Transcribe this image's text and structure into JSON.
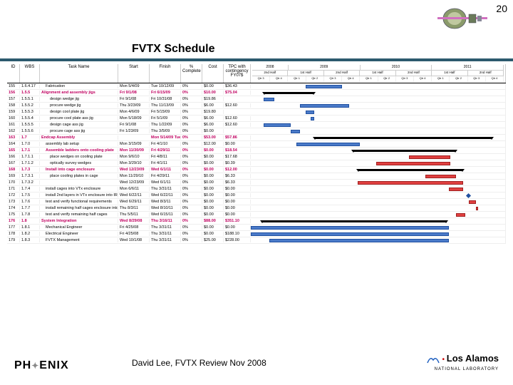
{
  "page_number": "20",
  "title": "FVTX Schedule",
  "footer_text": "David Lee, FVTX Review Nov 2008",
  "phenix_label_1": "PH",
  "phenix_label_2": "ENIX",
  "lanl_main": "Los Alamos",
  "lanl_sub": "NATIONAL LABORATORY",
  "headers": {
    "idx": "ID",
    "wbs": "WBS",
    "task": "Task Name",
    "start": "Start",
    "finish": "Finish",
    "pct": "% Complete",
    "cost": "Cost",
    "tpc": "TPC with contingency FY07$"
  },
  "years": [
    "2008",
    "2009",
    "2010",
    "2011"
  ],
  "halves": [
    "2nd Half",
    "1st Half",
    "2nd Half",
    "1st Half",
    "2nd Half",
    "1st Half",
    "2nd Half"
  ],
  "qtrs": [
    "Qtr 3",
    "Qtr 4",
    "Qtr 1",
    "Qtr 2",
    "Qtr 3",
    "Qtr 4",
    "Qtr 1",
    "Qtr 2",
    "Qtr 3",
    "Qtr 4",
    "Qtr 1",
    "Qtr 2",
    "Qtr 3",
    "Qtr 4"
  ],
  "gantt_range": {
    "start_q": 0,
    "total_q": 14
  },
  "rows": [
    {
      "id": "155",
      "wbs": "1.6.4.17",
      "task": "Fabrication",
      "start": "Mon 5/4/09",
      "finish": "Tue 10/12/09",
      "pct": "0%",
      "cost": "$0.00",
      "tpc": "$36.43",
      "bold": false,
      "indent": 1,
      "bar": {
        "type": "blue",
        "q_from": 3.0,
        "q_to": 5.0
      }
    },
    {
      "id": "156",
      "wbs": "1.5.5",
      "task": "Alignment and assembly jigs",
      "start": "Fri 9/1/08",
      "finish": "Fri 6/15/09",
      "pct": "0%",
      "cost": "$10.00",
      "tpc": "$75.04",
      "bold": true,
      "indent": 0,
      "bar": {
        "type": "summary",
        "q_from": 0.7,
        "q_to": 3.5
      }
    },
    {
      "id": "157",
      "wbs": "1.5.5.1",
      "task": "design wedge jig",
      "start": "Fri 9/1/08",
      "finish": "Fri 10/31/08",
      "pct": "0%",
      "cost": "$19.86",
      "tpc": "",
      "bold": false,
      "indent": 2,
      "bar": {
        "type": "blue",
        "q_from": 0.7,
        "q_to": 1.3
      }
    },
    {
      "id": "158",
      "wbs": "1.5.5.2",
      "task": "procure wedge jig",
      "start": "Thu 3/23/09",
      "finish": "Thu 11/13/09",
      "pct": "0%",
      "cost": "$6.00",
      "tpc": "$12.60",
      "bold": false,
      "indent": 2,
      "bar": {
        "type": "blue",
        "q_from": 2.7,
        "q_to": 5.4
      }
    },
    {
      "id": "159",
      "wbs": "1.5.5.3",
      "task": "design cool plate jig",
      "start": "Mon 4/6/09",
      "finish": "Fri 5/15/09",
      "pct": "0%",
      "cost": "$19.80",
      "tpc": "",
      "bold": false,
      "indent": 2,
      "bar": {
        "type": "blue",
        "q_from": 3.0,
        "q_to": 3.5
      }
    },
    {
      "id": "160",
      "wbs": "1.5.5.4",
      "task": "procure cool plate ass jig",
      "start": "Mon 5/18/09",
      "finish": "Fri 5/1/09",
      "pct": "0%",
      "cost": "$6.00",
      "tpc": "$12.60",
      "bold": false,
      "indent": 2,
      "bar": {
        "type": "blue",
        "q_from": 3.5,
        "q_to": 3.3
      }
    },
    {
      "id": "161",
      "wbs": "1.5.5.5",
      "task": "design cage ass jig",
      "start": "Fri 9/1/08",
      "finish": "Thu 1/22/09",
      "pct": "0%",
      "cost": "$6.00",
      "tpc": "$12.60",
      "bold": false,
      "indent": 2,
      "bar": {
        "type": "blue",
        "q_from": 0.7,
        "q_to": 2.2
      }
    },
    {
      "id": "162",
      "wbs": "1.5.5.6",
      "task": "procure cage ass jig",
      "start": "Fri 1/23/09",
      "finish": "Thu 3/5/09",
      "pct": "0%",
      "cost": "$0.00",
      "tpc": "",
      "bold": false,
      "indent": 2,
      "bar": {
        "type": "blue",
        "q_from": 2.2,
        "q_to": 2.7
      }
    },
    {
      "id": "163",
      "wbs": "1.7",
      "task": "Endcap Assembly",
      "start": "",
      "finish": "Mon 5/14/09 Tue 10/25/11",
      "pct": "0%",
      "cost": "$53.00",
      "tpc": "$57.86",
      "bold": true,
      "indent": 0,
      "bar": {
        "type": "summary",
        "q_from": 3.5,
        "q_to": 13.3
      }
    },
    {
      "id": "164",
      "wbs": "1.7.0",
      "task": "assembly lab setup",
      "start": "Mon 3/15/09",
      "finish": "Fri 4/1/10",
      "pct": "0%",
      "cost": "$12.00",
      "tpc": "$0.00",
      "bold": false,
      "indent": 1,
      "bar": {
        "type": "blue",
        "q_from": 2.5,
        "q_to": 6.0
      }
    },
    {
      "id": "165",
      "wbs": "1.7.1",
      "task": "Assemble ladders onto cooling plate",
      "start": "Mon 11/30/09",
      "finish": "Fri 4/29/11",
      "pct": "0%",
      "cost": "$0.00",
      "tpc": "$18.54",
      "bold": true,
      "indent": 1,
      "bar": {
        "type": "summary",
        "q_from": 5.6,
        "q_to": 11.3
      }
    },
    {
      "id": "166",
      "wbs": "1.7.1.1",
      "task": "place wedges on cooling plate",
      "start": "Mon 9/6/10",
      "finish": "Fri 4/8/11",
      "pct": "0%",
      "cost": "$0.00",
      "tpc": "$17.68",
      "bold": false,
      "indent": 2,
      "bar": {
        "type": "red",
        "q_from": 8.7,
        "q_to": 11.0
      }
    },
    {
      "id": "167",
      "wbs": "1.7.1.2",
      "task": "optically survey wedges",
      "start": "Mon 3/29/10",
      "finish": "Fri 4/1/11",
      "pct": "0%",
      "cost": "$0.00",
      "tpc": "$0.39",
      "bold": false,
      "indent": 2,
      "bar": {
        "type": "red",
        "q_from": 6.9,
        "q_to": 11.0
      }
    },
    {
      "id": "168",
      "wbs": "1.7.3",
      "task": "Install into cage enclosure",
      "start": "Wed 12/23/09",
      "finish": "Wed 6/1/11",
      "pct": "0%",
      "cost": "$0.00",
      "tpc": "$12.00",
      "bold": true,
      "indent": 1,
      "bar": {
        "type": "summary",
        "q_from": 5.9,
        "q_to": 11.7
      }
    },
    {
      "id": "169",
      "wbs": "1.7.3.1",
      "task": "place cooling plates in cage",
      "start": "Mon 11/29/10",
      "finish": "Fri 4/29/11",
      "pct": "0%",
      "cost": "$0.00",
      "tpc": "$6.33",
      "bold": false,
      "indent": 2,
      "bar": {
        "type": "red",
        "q_from": 9.6,
        "q_to": 11.3
      }
    },
    {
      "id": "170",
      "wbs": "1.7.3.2",
      "task": "",
      "start": "Wed 12/23/09",
      "finish": "Wed 6/1/11",
      "pct": "0%",
      "cost": "$0.00",
      "tpc": "$6.33",
      "bold": false,
      "indent": 2,
      "bar": {
        "type": "red",
        "q_from": 5.9,
        "q_to": 11.7
      }
    },
    {
      "id": "171",
      "wbs": "1.7.4",
      "task": "install cages into VTx enclosure",
      "start": "Mon 6/6/11",
      "finish": "Thu 3/31/11",
      "pct": "0%",
      "cost": "$0.00",
      "tpc": "$0.00",
      "bold": false,
      "indent": 1,
      "bar": {
        "type": "red",
        "q_from": 11.7,
        "q_to": 10.9
      }
    },
    {
      "id": "172",
      "wbs": "1.7.5",
      "task": "install 2nd layers in VTx enclosure into IR",
      "start": "Wed 6/22/11",
      "finish": "Wed 6/22/11",
      "pct": "0%",
      "cost": "$0.00",
      "tpc": "$0.00",
      "bold": false,
      "indent": 1,
      "bar": {
        "type": "milestone",
        "q_from": 11.9
      }
    },
    {
      "id": "173",
      "wbs": "1.7.6",
      "task": "test and verify functional requirements",
      "start": "Wed 6/29/11",
      "finish": "Wed 8/3/11",
      "pct": "0%",
      "cost": "$0.00",
      "tpc": "$0.00",
      "bold": false,
      "indent": 1,
      "bar": {
        "type": "red",
        "q_from": 12.0,
        "q_to": 12.4
      }
    },
    {
      "id": "174",
      "wbs": "1.7.7",
      "task": "install remaining half cages enclosure into IR",
      "start": "Thu 8/3/11",
      "finish": "Wed 8/10/11",
      "pct": "0%",
      "cost": "$0.00",
      "tpc": "$0.00",
      "bold": false,
      "indent": 1,
      "bar": {
        "type": "red",
        "q_from": 12.4,
        "q_to": 12.5
      }
    },
    {
      "id": "175",
      "wbs": "1.7.8",
      "task": "test and verify remaining half cages",
      "start": "Thu 5/5/11",
      "finish": "Wed 6/15/11",
      "pct": "0%",
      "cost": "$0.00",
      "tpc": "$0.00",
      "bold": false,
      "indent": 1,
      "bar": {
        "type": "red",
        "q_from": 11.3,
        "q_to": 11.8
      }
    },
    {
      "id": "176",
      "wbs": "1.8",
      "task": "System Integration",
      "start": "Wed 8/29/08",
      "finish": "Thu 3/16/11",
      "pct": "0%",
      "cost": "$88.00",
      "tpc": "$351.10",
      "bold": true,
      "indent": 0,
      "bar": {
        "type": "summary",
        "q_from": 0.6,
        "q_to": 10.8
      }
    },
    {
      "id": "177",
      "wbs": "1.8.1",
      "task": "Mechanical Engineer",
      "start": "Fri 4/25/08",
      "finish": "Thu 3/31/11",
      "pct": "0%",
      "cost": "$0.00",
      "tpc": "$0.00",
      "bold": false,
      "indent": 1,
      "bar": {
        "type": "blue",
        "q_from": 0.0,
        "q_to": 10.9
      }
    },
    {
      "id": "178",
      "wbs": "1.8.2",
      "task": "Electrical Engineer",
      "start": "Fri 4/25/08",
      "finish": "Thu 3/31/11",
      "pct": "0%",
      "cost": "$0.00",
      "tpc": "$188.10",
      "bold": false,
      "indent": 1,
      "bar": {
        "type": "blue",
        "q_from": 0.0,
        "q_to": 10.9
      }
    },
    {
      "id": "179",
      "wbs": "1.8.3",
      "task": "FVTX Management",
      "start": "Wed 10/1/08",
      "finish": "Thu 3/31/11",
      "pct": "0%",
      "cost": "$25.00",
      "tpc": "$228.00",
      "bold": false,
      "indent": 1,
      "bar": {
        "type": "blue",
        "q_from": 1.0,
        "q_to": 10.9
      }
    }
  ],
  "colors": {
    "underline": "#2c5a6e",
    "bar_blue": "#4a7ac8",
    "bar_red": "#e04040",
    "bold_text": "#c00060"
  }
}
